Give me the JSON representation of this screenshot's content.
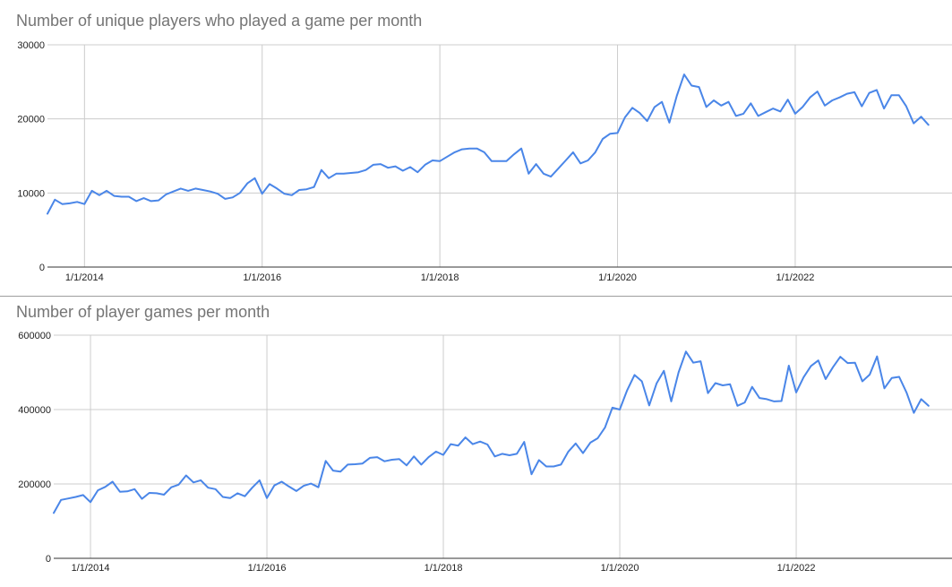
{
  "colors": {
    "line": "#4a86e8",
    "grid": "#cccccc",
    "baseline": "#333333",
    "title": "#757575"
  },
  "chart_data": [
    {
      "type": "line",
      "title": "Number of unique players who played a game per month",
      "xlabel": "",
      "ylabel": "",
      "x_start": "2013-08",
      "xlim": [
        "2013-08",
        "2023-08"
      ],
      "ylim": [
        0,
        30000
      ],
      "y_ticks": [
        0,
        10000,
        20000,
        30000
      ],
      "x_ticks": [
        "1/1/2014",
        "1/1/2016",
        "1/1/2018",
        "1/1/2020",
        "1/1/2022"
      ],
      "grid": true,
      "legend": "none",
      "series": [
        {
          "values": [
            7200,
            9100,
            8500,
            8600,
            8800,
            8500,
            10300,
            9700,
            10300,
            9600,
            9500,
            9500,
            8900,
            9300,
            8900,
            9000,
            9800,
            10200,
            10600,
            10300,
            10600,
            10400,
            10200,
            9900,
            9200,
            9400,
            10000,
            11300,
            12000,
            9900,
            11200,
            10600,
            9900,
            9700,
            10400,
            10500,
            10800,
            13100,
            12000,
            12600,
            12600,
            12700,
            12800,
            13100,
            13800,
            13900,
            13400,
            13600,
            13000,
            13500,
            12800,
            13800,
            14400,
            14300,
            14900,
            15500,
            15900,
            16000,
            16000,
            15500,
            14300,
            14300,
            14300,
            15200,
            16000,
            12600,
            13900,
            12600,
            12200,
            13300,
            14400,
            15500,
            14000,
            14400,
            15500,
            17300,
            18000,
            18100,
            20200,
            21500,
            20800,
            19700,
            21600,
            22300,
            19500,
            23100,
            26000,
            24500,
            24300,
            21600,
            22500,
            21800,
            22300,
            20400,
            20700,
            22100,
            20400,
            20900,
            21400,
            21000,
            22600,
            20700,
            21600,
            22900,
            23700,
            21800,
            22500,
            22900,
            23400,
            23600,
            21700,
            23500,
            23900,
            21400,
            23200,
            23200,
            21700,
            19400,
            20300,
            19200
          ]
        }
      ]
    },
    {
      "type": "line",
      "title": "Number of player games per month",
      "xlabel": "",
      "ylabel": "",
      "x_start": "2013-08",
      "xlim": [
        "2013-08",
        "2023-08"
      ],
      "ylim": [
        0,
        600000
      ],
      "y_ticks": [
        0,
        200000,
        400000,
        600000
      ],
      "x_ticks": [
        "1/1/2014",
        "1/1/2016",
        "1/1/2018",
        "1/1/2020",
        "1/1/2022"
      ],
      "grid": true,
      "legend": "none",
      "series": [
        {
          "values": [
            122000,
            157000,
            161000,
            165000,
            170000,
            151000,
            183000,
            192000,
            206000,
            179000,
            180000,
            186000,
            160000,
            176000,
            175000,
            171000,
            191000,
            198000,
            223000,
            204000,
            210000,
            190000,
            186000,
            165000,
            162000,
            175000,
            167000,
            190000,
            210000,
            162000,
            196000,
            206000,
            193000,
            181000,
            195000,
            201000,
            191000,
            262000,
            236000,
            233000,
            252000,
            253000,
            255000,
            270000,
            272000,
            261000,
            265000,
            267000,
            250000,
            274000,
            252000,
            272000,
            287000,
            278000,
            307000,
            303000,
            325000,
            307000,
            314000,
            306000,
            274000,
            281000,
            277000,
            281000,
            313000,
            226000,
            264000,
            247000,
            247000,
            252000,
            287000,
            309000,
            283000,
            311000,
            323000,
            352000,
            405000,
            400000,
            452000,
            493000,
            476000,
            411000,
            470000,
            504000,
            422000,
            500000,
            556000,
            526000,
            530000,
            444000,
            471000,
            465000,
            468000,
            410000,
            419000,
            461000,
            431000,
            428000,
            422000,
            423000,
            518000,
            446000,
            487000,
            517000,
            532000,
            482000,
            514000,
            542000,
            525000,
            526000,
            476000,
            494000,
            543000,
            457000,
            485000,
            488000,
            446000,
            391000,
            428000,
            410000
          ]
        }
      ]
    }
  ]
}
